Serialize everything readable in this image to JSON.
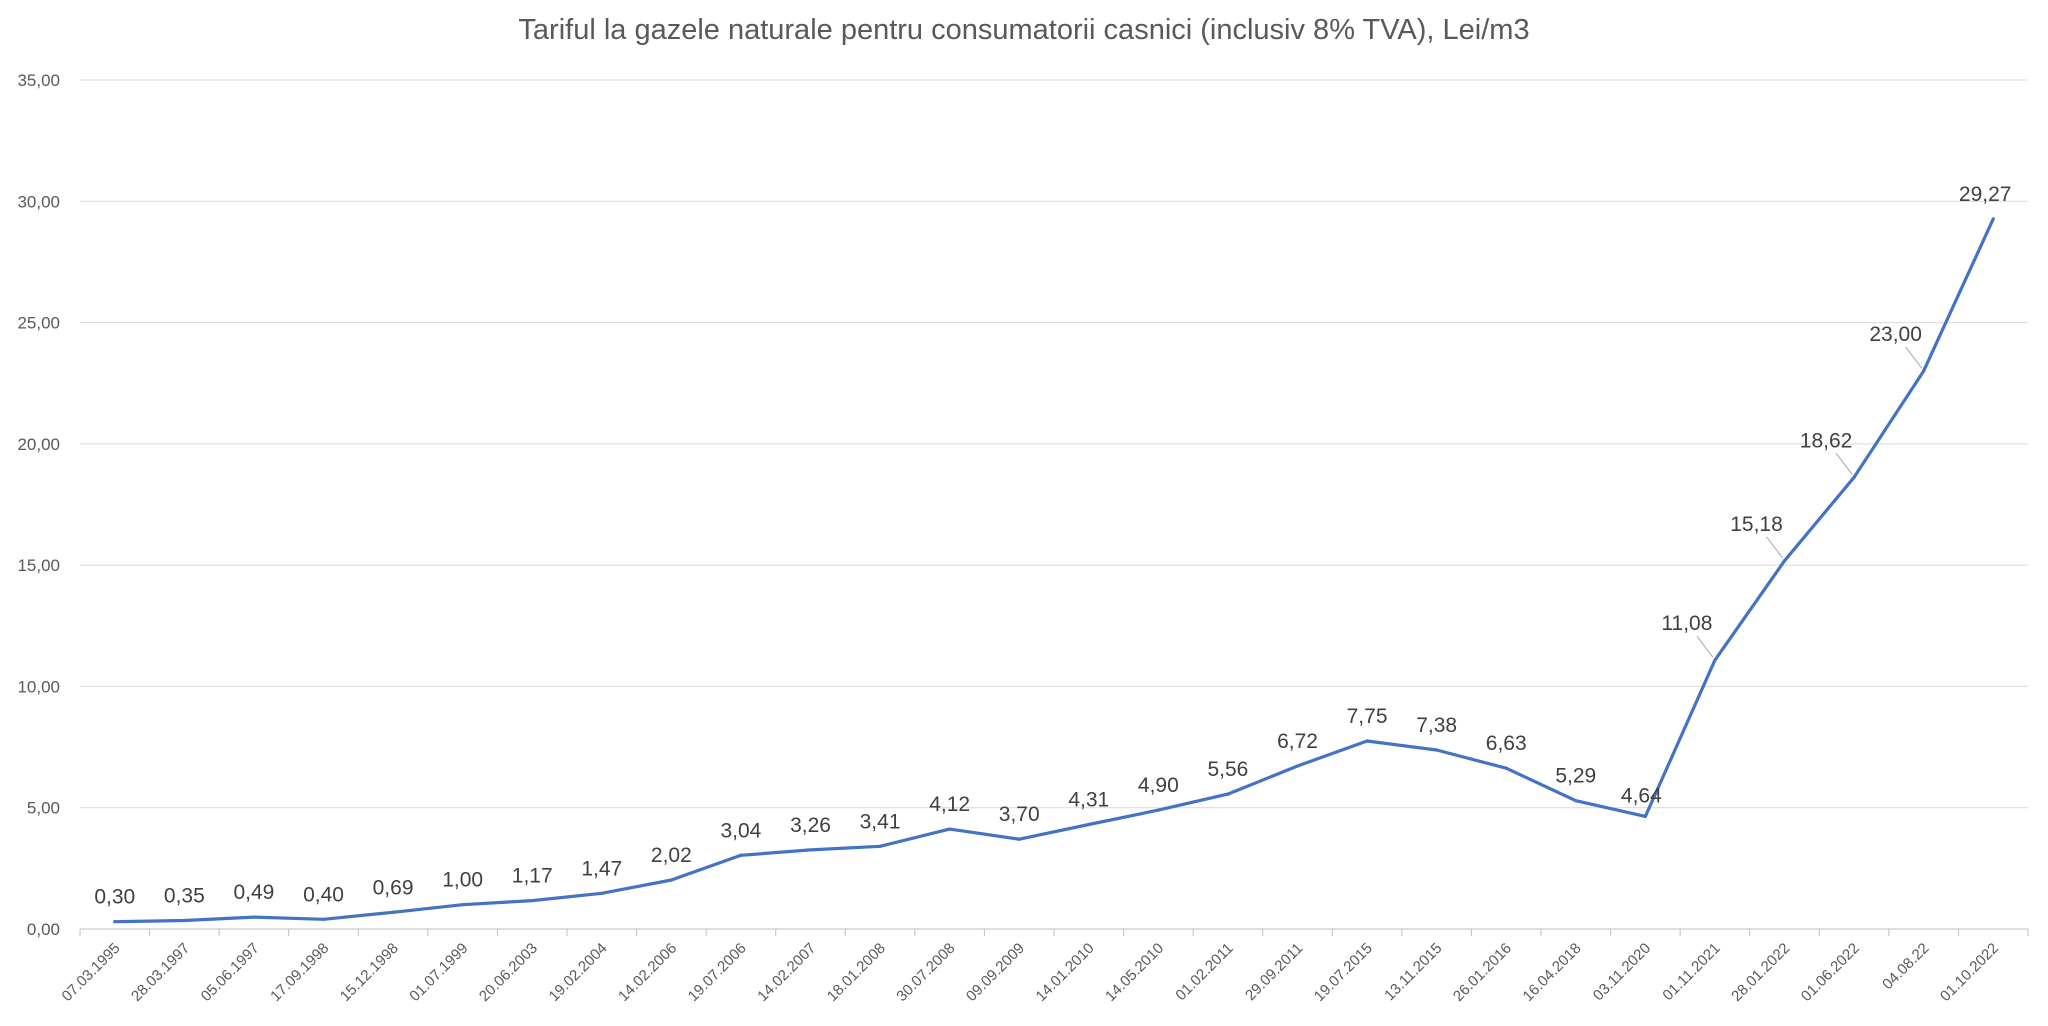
{
  "chart_data": {
    "type": "line",
    "title": "Tariful la gazele naturale pentru consumatorii casnici (inclusiv 8% TVA), Lei/m3",
    "xlabel": "",
    "ylabel": "",
    "ylim": [
      0,
      35
    ],
    "yticks": [
      "0,00",
      "5,00",
      "10,00",
      "15,00",
      "20,00",
      "25,00",
      "30,00",
      "35,00"
    ],
    "ytick_values": [
      0,
      5,
      10,
      15,
      20,
      25,
      30,
      35
    ],
    "grid": true,
    "legend": "none",
    "line_color": "#4472C4",
    "categories": [
      "07.03.1995",
      "28.03.1997",
      "05.06.1997",
      "17.09.1998",
      "15.12.1998",
      "01.07.1999",
      "20.06.2003",
      "19.02.2004",
      "14.02.2006",
      "19.07.2006",
      "14.02.2007",
      "18.01.2008",
      "30.07.2008",
      "09.09.2009",
      "14.01.2010",
      "14.05.2010",
      "01.02.2011",
      "29.09.2011",
      "19.07.2015",
      "13.11.2015",
      "26.01.2016",
      "16.04.2018",
      "03.11.2020",
      "01.11.2021",
      "28.01.2022",
      "01.06.2022",
      "04.08.22",
      "01.10.2022"
    ],
    "series": [
      {
        "values": [
          0.3,
          0.35,
          0.49,
          0.4,
          0.69,
          1.0,
          1.17,
          1.47,
          2.02,
          3.04,
          3.26,
          3.41,
          4.12,
          3.7,
          4.31,
          4.9,
          5.56,
          6.72,
          7.75,
          7.38,
          6.63,
          5.29,
          4.64,
          11.08,
          15.18,
          18.62,
          23.0,
          29.27
        ],
        "labels": [
          "0,30",
          "0,35",
          "0,49",
          "0,40",
          "0,69",
          "1,00",
          "1,17",
          "1,47",
          "2,02",
          "3,04",
          "3,26",
          "3,41",
          "4,12",
          "3,70",
          "4,31",
          "4,90",
          "5,56",
          "6,72",
          "7,75",
          "7,38",
          "6,63",
          "5,29",
          "4,64",
          "11,08",
          "15,18",
          "18,62",
          "23,00",
          "29,27"
        ]
      }
    ]
  }
}
